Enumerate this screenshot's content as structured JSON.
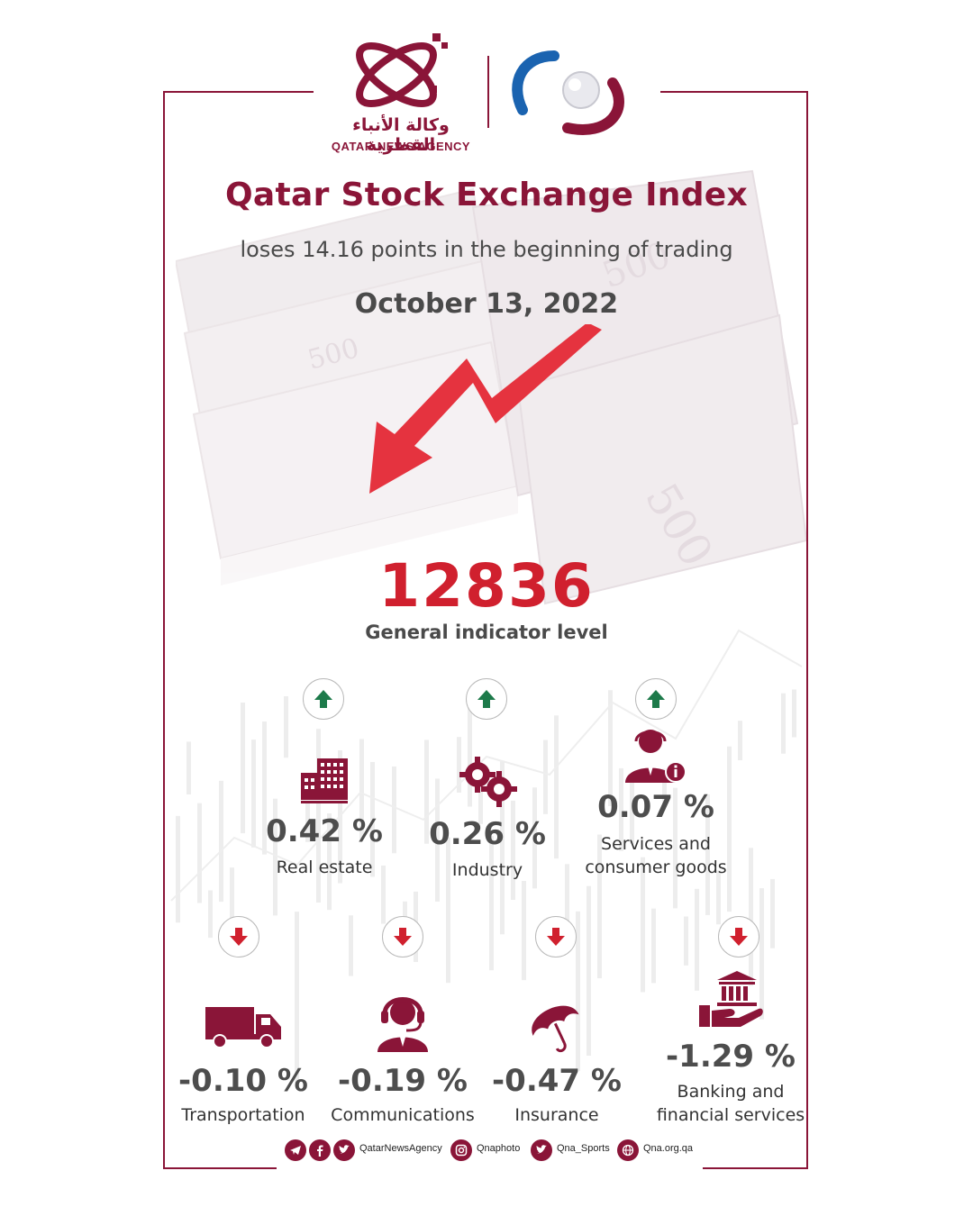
{
  "header": {
    "logo_arabic": "وكالة الأنباء القطرية",
    "logo_english": "QATAR NEWS AGENCY"
  },
  "title": "Qatar Stock Exchange Index",
  "subtitle": "loses 14.16 points in the beginning of trading",
  "date": "October 13, 2022",
  "index": {
    "value": "12836",
    "label": "General indicator level"
  },
  "colors": {
    "brand": "#8a1538",
    "down": "#d0202e",
    "up": "#1d7a4a",
    "text": "#4a4a4a"
  },
  "sectors_up": [
    {
      "icon": "building-icon",
      "change": "0.42 %",
      "label": "Real estate",
      "direction": "up"
    },
    {
      "icon": "gears-icon",
      "change": "0.26 %",
      "label": "Industry",
      "direction": "up"
    },
    {
      "icon": "consumer-service-icon",
      "change": "0.07 %",
      "label_line1": "Services and",
      "label_line2": "consumer goods",
      "direction": "up"
    }
  ],
  "sectors_down": [
    {
      "icon": "truck-icon",
      "change": "-0.10 %",
      "label": "Transportation",
      "direction": "down"
    },
    {
      "icon": "headset-icon",
      "change": "-0.19 %",
      "label": "Communications",
      "direction": "down"
    },
    {
      "icon": "umbrella-icon",
      "change": "-0.47 %",
      "label": "Insurance",
      "direction": "down"
    },
    {
      "icon": "bank-hand-icon",
      "change": "-1.29 %",
      "label_line1": "Banking and",
      "label_line2": "financial services",
      "direction": "down"
    }
  ],
  "footer": {
    "handle_main": "QatarNewsAgency",
    "handle_photo": "Qnaphoto",
    "handle_sports": "Qna_Sports",
    "website": "Qna.org.qa"
  }
}
